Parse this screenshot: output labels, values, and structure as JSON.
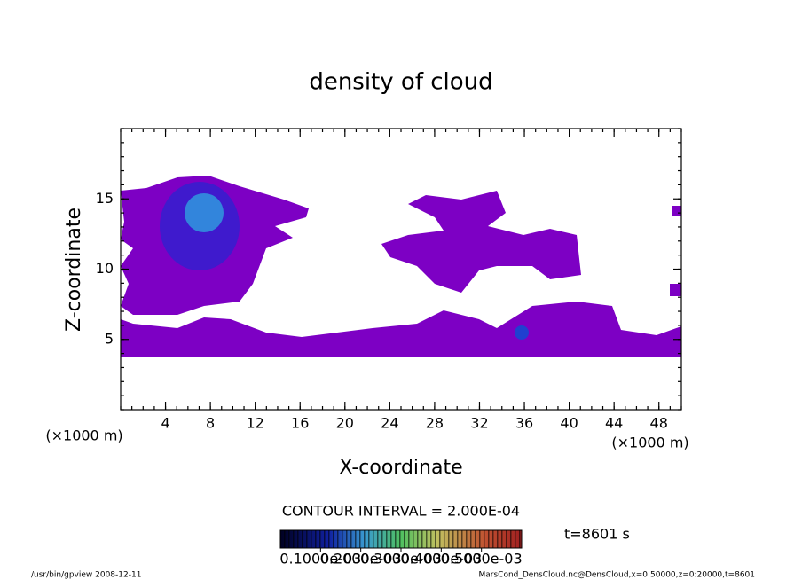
{
  "chart_data": {
    "type": "contour",
    "title": "density of cloud",
    "x_label": "X-coordinate",
    "y_label": "Z-coordinate",
    "x_unit": "(×1000 m)",
    "xlim": [
      0,
      50
    ],
    "xticks": [
      4,
      8,
      12,
      16,
      20,
      24,
      28,
      32,
      36,
      40,
      44,
      48
    ],
    "ylim": [
      0,
      20
    ],
    "yticks": [
      5,
      10,
      15
    ],
    "contour_interval": "CONTOUR INTERVAL = 2.000E-04",
    "time": "t=8601 s",
    "colorbar_ticks": [
      {
        "value": 0.0001,
        "label": "0.1000e-03"
      },
      {
        "value": 0.0002,
        "label": "0.2000e-03"
      },
      {
        "value": 0.0003,
        "label": "0.3000e-03"
      },
      {
        "value": 0.0004,
        "label": "0.4000e-03"
      },
      {
        "value": 0.0005,
        "label": "0.5000e-03"
      }
    ],
    "colorbar_lim": [
      0,
      0.0006
    ],
    "footer_left": "/usr/bin/gpview  2008-12-11",
    "footer_right": "MarsCond_DensCloud.nc@DensCloud,x=0:50000,z=0:20000,t=8601"
  }
}
